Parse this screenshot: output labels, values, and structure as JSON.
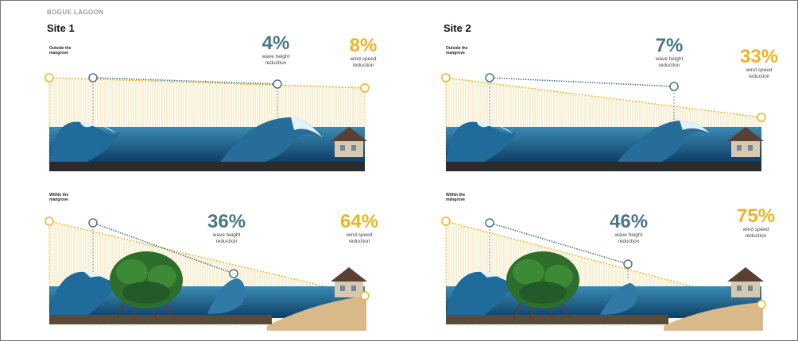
{
  "header": "BOGUE LAGOON",
  "colors": {
    "wave_accent": "#4a7688",
    "wind_accent": "#f0b323",
    "water": "#1f5f8a",
    "foliage": "#2d6e2a"
  },
  "sites": [
    {
      "title": "Site 1",
      "panels": [
        {
          "zone": "Outside the mangrove",
          "wave": {
            "value": "4%",
            "label": "wave height reduction"
          },
          "wind": {
            "value": "8%",
            "label": "wind speed reduction"
          }
        },
        {
          "zone": "Within the mangrove",
          "wave": {
            "value": "36%",
            "label": "wave height reduction"
          },
          "wind": {
            "value": "64%",
            "label": "wind speed reduction"
          }
        }
      ]
    },
    {
      "title": "Site 2",
      "panels": [
        {
          "zone": "Outside the mangrove",
          "wave": {
            "value": "7%",
            "label": "wave height reduction"
          },
          "wind": {
            "value": "33%",
            "label": "wind speed reduction"
          }
        },
        {
          "zone": "Within the mangrove",
          "wave": {
            "value": "46%",
            "label": "wave height reduction"
          },
          "wind": {
            "value": "75%",
            "label": "wind speed reduction"
          }
        }
      ]
    }
  ]
}
